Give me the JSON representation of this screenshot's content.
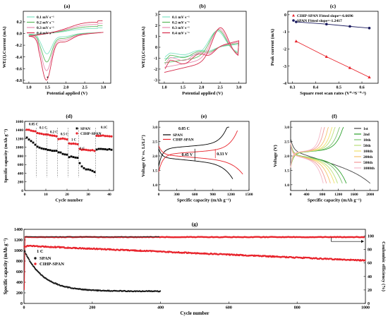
{
  "chart_data": [
    {
      "id": "a",
      "panel_label": "(a)",
      "type": "line",
      "xlabel": "Potential applied (V)",
      "ylabel": "WE(1).Current (mA)",
      "xlim": [
        0.85,
        3.2
      ],
      "ylim": [
        -0.85,
        0.38
      ],
      "xticks": [
        1.0,
        1.5,
        2.0,
        2.5,
        3.0
      ],
      "yticks": [
        -0.8,
        -0.6,
        -0.4,
        -0.2,
        0.0,
        0.2
      ],
      "legend_position": "top-left",
      "series": [
        {
          "name": "0.1 mV s⁻¹",
          "color": "#7fe3c4",
          "shape": "cv",
          "s": 0.45
        },
        {
          "name": "0.2 mV s⁻¹",
          "color": "#5cb85c",
          "shape": "cv",
          "s": 0.62
        },
        {
          "name": "0.3 mV s⁻¹",
          "color": "#e88bb0",
          "shape": "cv",
          "s": 0.8
        },
        {
          "name": "0.4 mV s⁻¹",
          "color": "#d62b4b",
          "shape": "cv",
          "s": 1.0
        }
      ]
    },
    {
      "id": "b",
      "panel_label": "(b)",
      "type": "line",
      "xlabel": "Potential applied (V)",
      "ylabel": "WE(1).Current (mA)",
      "xlim": [
        0.85,
        3.2
      ],
      "ylim": [
        -3.3,
        3.3
      ],
      "xticks": [
        1.0,
        1.5,
        2.0,
        2.5,
        3.0
      ],
      "yticks": [
        -3,
        -2,
        -1,
        0,
        1,
        2,
        3
      ],
      "legend_position": "top-left",
      "series": [
        {
          "name": "0.1 mV s⁻¹",
          "color": "#7fe3c4",
          "s": 0.45
        },
        {
          "name": "0.2 mV s⁻¹",
          "color": "#5cb85c",
          "s": 0.62
        },
        {
          "name": "0.3 mV s⁻¹",
          "color": "#e88bb0",
          "s": 0.8
        },
        {
          "name": "0.4 mV s⁻¹",
          "color": "#d62b4b",
          "s": 1.0
        }
      ]
    },
    {
      "id": "c",
      "panel_label": "(c)",
      "type": "scatter",
      "xlabel": "Square root scan rates (V⁰·⁵S⁻⁰·⁵)",
      "ylabel": "Peak current (mA)",
      "xlim": [
        0.28,
        0.67
      ],
      "ylim": [
        -4.0,
        0.2
      ],
      "xticks": [
        0.3,
        0.4,
        0.5,
        0.6
      ],
      "yticks": [
        -4,
        -3,
        -2,
        -1,
        0
      ],
      "legend_position": "top",
      "series": [
        {
          "name": "CIHP-SPAN Fitted slope=-6.6696",
          "color": "#e8242c",
          "marker": "triangle",
          "x": [
            0.316,
            0.447,
            0.548,
            0.632
          ],
          "y": [
            -1.55,
            -2.45,
            -3.1,
            -3.65
          ]
        },
        {
          "name": "SPAN Fitted slope=-1.2417",
          "color": "#1a1a5e",
          "marker": "circle",
          "x": [
            0.316,
            0.447,
            0.548,
            0.632
          ],
          "y": [
            -0.42,
            -0.55,
            -0.68,
            -0.78
          ]
        }
      ]
    },
    {
      "id": "d",
      "panel_label": "(d)",
      "type": "scatter",
      "xlabel": "Cycle number",
      "ylabel": "Specific capacity (mAh g⁻¹)",
      "xlim": [
        0,
        42
      ],
      "ylim": [
        0,
        1600
      ],
      "xticks": [
        0,
        10,
        20,
        30,
        40
      ],
      "yticks": [
        0,
        200,
        400,
        600,
        800,
        1000,
        1200,
        1400,
        1600
      ],
      "legend_position": "top-right",
      "rate_labels": [
        "0.05 C",
        "0.1 C",
        "0.2 C",
        "0.5 C",
        "1 C",
        "2 C",
        "0.1C"
      ],
      "series": [
        {
          "name": "SPAN",
          "color": "#000000",
          "marker": "square",
          "segments": [
            [
              1,
              5,
              1220,
              1060
            ],
            [
              6,
              10,
              1010,
              960
            ],
            [
              11,
              15,
              950,
              910
            ],
            [
              16,
              20,
              880,
              840
            ],
            [
              21,
              25,
              780,
              750
            ],
            [
              26,
              27,
              640,
              560
            ],
            [
              28,
              33,
              520,
              420
            ],
            [
              34,
              41,
              960,
              940
            ]
          ]
        },
        {
          "name": "CIHP-SPAN",
          "color": "#e8242c",
          "marker": "circle",
          "segments": [
            [
              1,
              5,
              1420,
              1370
            ],
            [
              6,
              10,
              1320,
              1300
            ],
            [
              11,
              15,
              1280,
              1250
            ],
            [
              16,
              20,
              1200,
              1180
            ],
            [
              21,
              25,
              1090,
              1060
            ],
            [
              26,
              33,
              960,
              930
            ],
            [
              34,
              41,
              1270,
              1250
            ]
          ]
        }
      ]
    },
    {
      "id": "e",
      "panel_label": "(e)",
      "type": "line",
      "xlabel": "Specific capacity (mAh g⁻¹)",
      "ylabel": "Voltage (V vs. Li/Li⁺)",
      "xlim": [
        0,
        1500
      ],
      "ylim": [
        0.8,
        3.2
      ],
      "xticks": [
        0,
        300,
        600,
        900,
        1200,
        1500
      ],
      "yticks": [
        1.0,
        1.5,
        2.0,
        2.5,
        3.0
      ],
      "legend_title": "0.05 C",
      "legend_position": "top-left",
      "annotations": [
        "0.45 V",
        "0.33 V"
      ],
      "series": [
        {
          "name": "SPAN",
          "color": "#000000",
          "dis_end": 1230,
          "ch_end": 1170
        },
        {
          "name": "CIHP-SPAN",
          "color": "#e8242c",
          "dis_end": 1420,
          "ch_end": 1330
        }
      ]
    },
    {
      "id": "f",
      "panel_label": "(f)",
      "type": "line",
      "xlabel": "Specific capacity (mAh g⁻¹)",
      "ylabel": "Voltage (V)",
      "xlim": [
        0,
        2200
      ],
      "ylim": [
        0.8,
        3.2
      ],
      "xticks": [
        0,
        400,
        800,
        1200,
        1600,
        2000
      ],
      "yticks": [
        1.0,
        1.5,
        2.0,
        2.5,
        3.0
      ],
      "legend_position": "right",
      "series": [
        {
          "name": "1st",
          "color": "#444444",
          "cap": 2000,
          "first": true
        },
        {
          "name": "2nd",
          "color": "#2ca02c",
          "cap": 1400
        },
        {
          "name": "10th",
          "color": "#7cc46e",
          "cap": 1300
        },
        {
          "name": "50th",
          "color": "#b9e07a",
          "cap": 1180
        },
        {
          "name": "100th",
          "color": "#f0e16a",
          "cap": 1100
        },
        {
          "name": "200th",
          "color": "#f5c26b",
          "cap": 1000
        },
        {
          "name": "500th",
          "color": "#f29a9a",
          "cap": 900
        },
        {
          "name": "1000th",
          "color": "#f5b8c8",
          "cap": 820
        }
      ]
    },
    {
      "id": "g",
      "panel_label": "(g)",
      "type": "scatter",
      "xlabel": "Cycle number",
      "ylabel": "Specific capacity (mAh g⁻¹)",
      "y2label": "Coulombic efficiency (%)",
      "rate_label": "1 C",
      "xlim": [
        0,
        1000
      ],
      "ylim": [
        0,
        1400
      ],
      "y2lim": [
        0,
        110
      ],
      "xticks": [
        0,
        200,
        400,
        600,
        800,
        1000
      ],
      "yticks": [
        0,
        200,
        400,
        600,
        800,
        1000,
        1200,
        1400
      ],
      "y2ticks": [
        0,
        20,
        40,
        60,
        80,
        100
      ],
      "legend_position": "left",
      "series": [
        {
          "name": "SPAN",
          "color": "#1a1a1a",
          "marker": "circle",
          "axis": "left"
        },
        {
          "name": "CIHP-SPAN",
          "color": "#e8242c",
          "marker": "circle",
          "axis": "left"
        }
      ]
    }
  ]
}
